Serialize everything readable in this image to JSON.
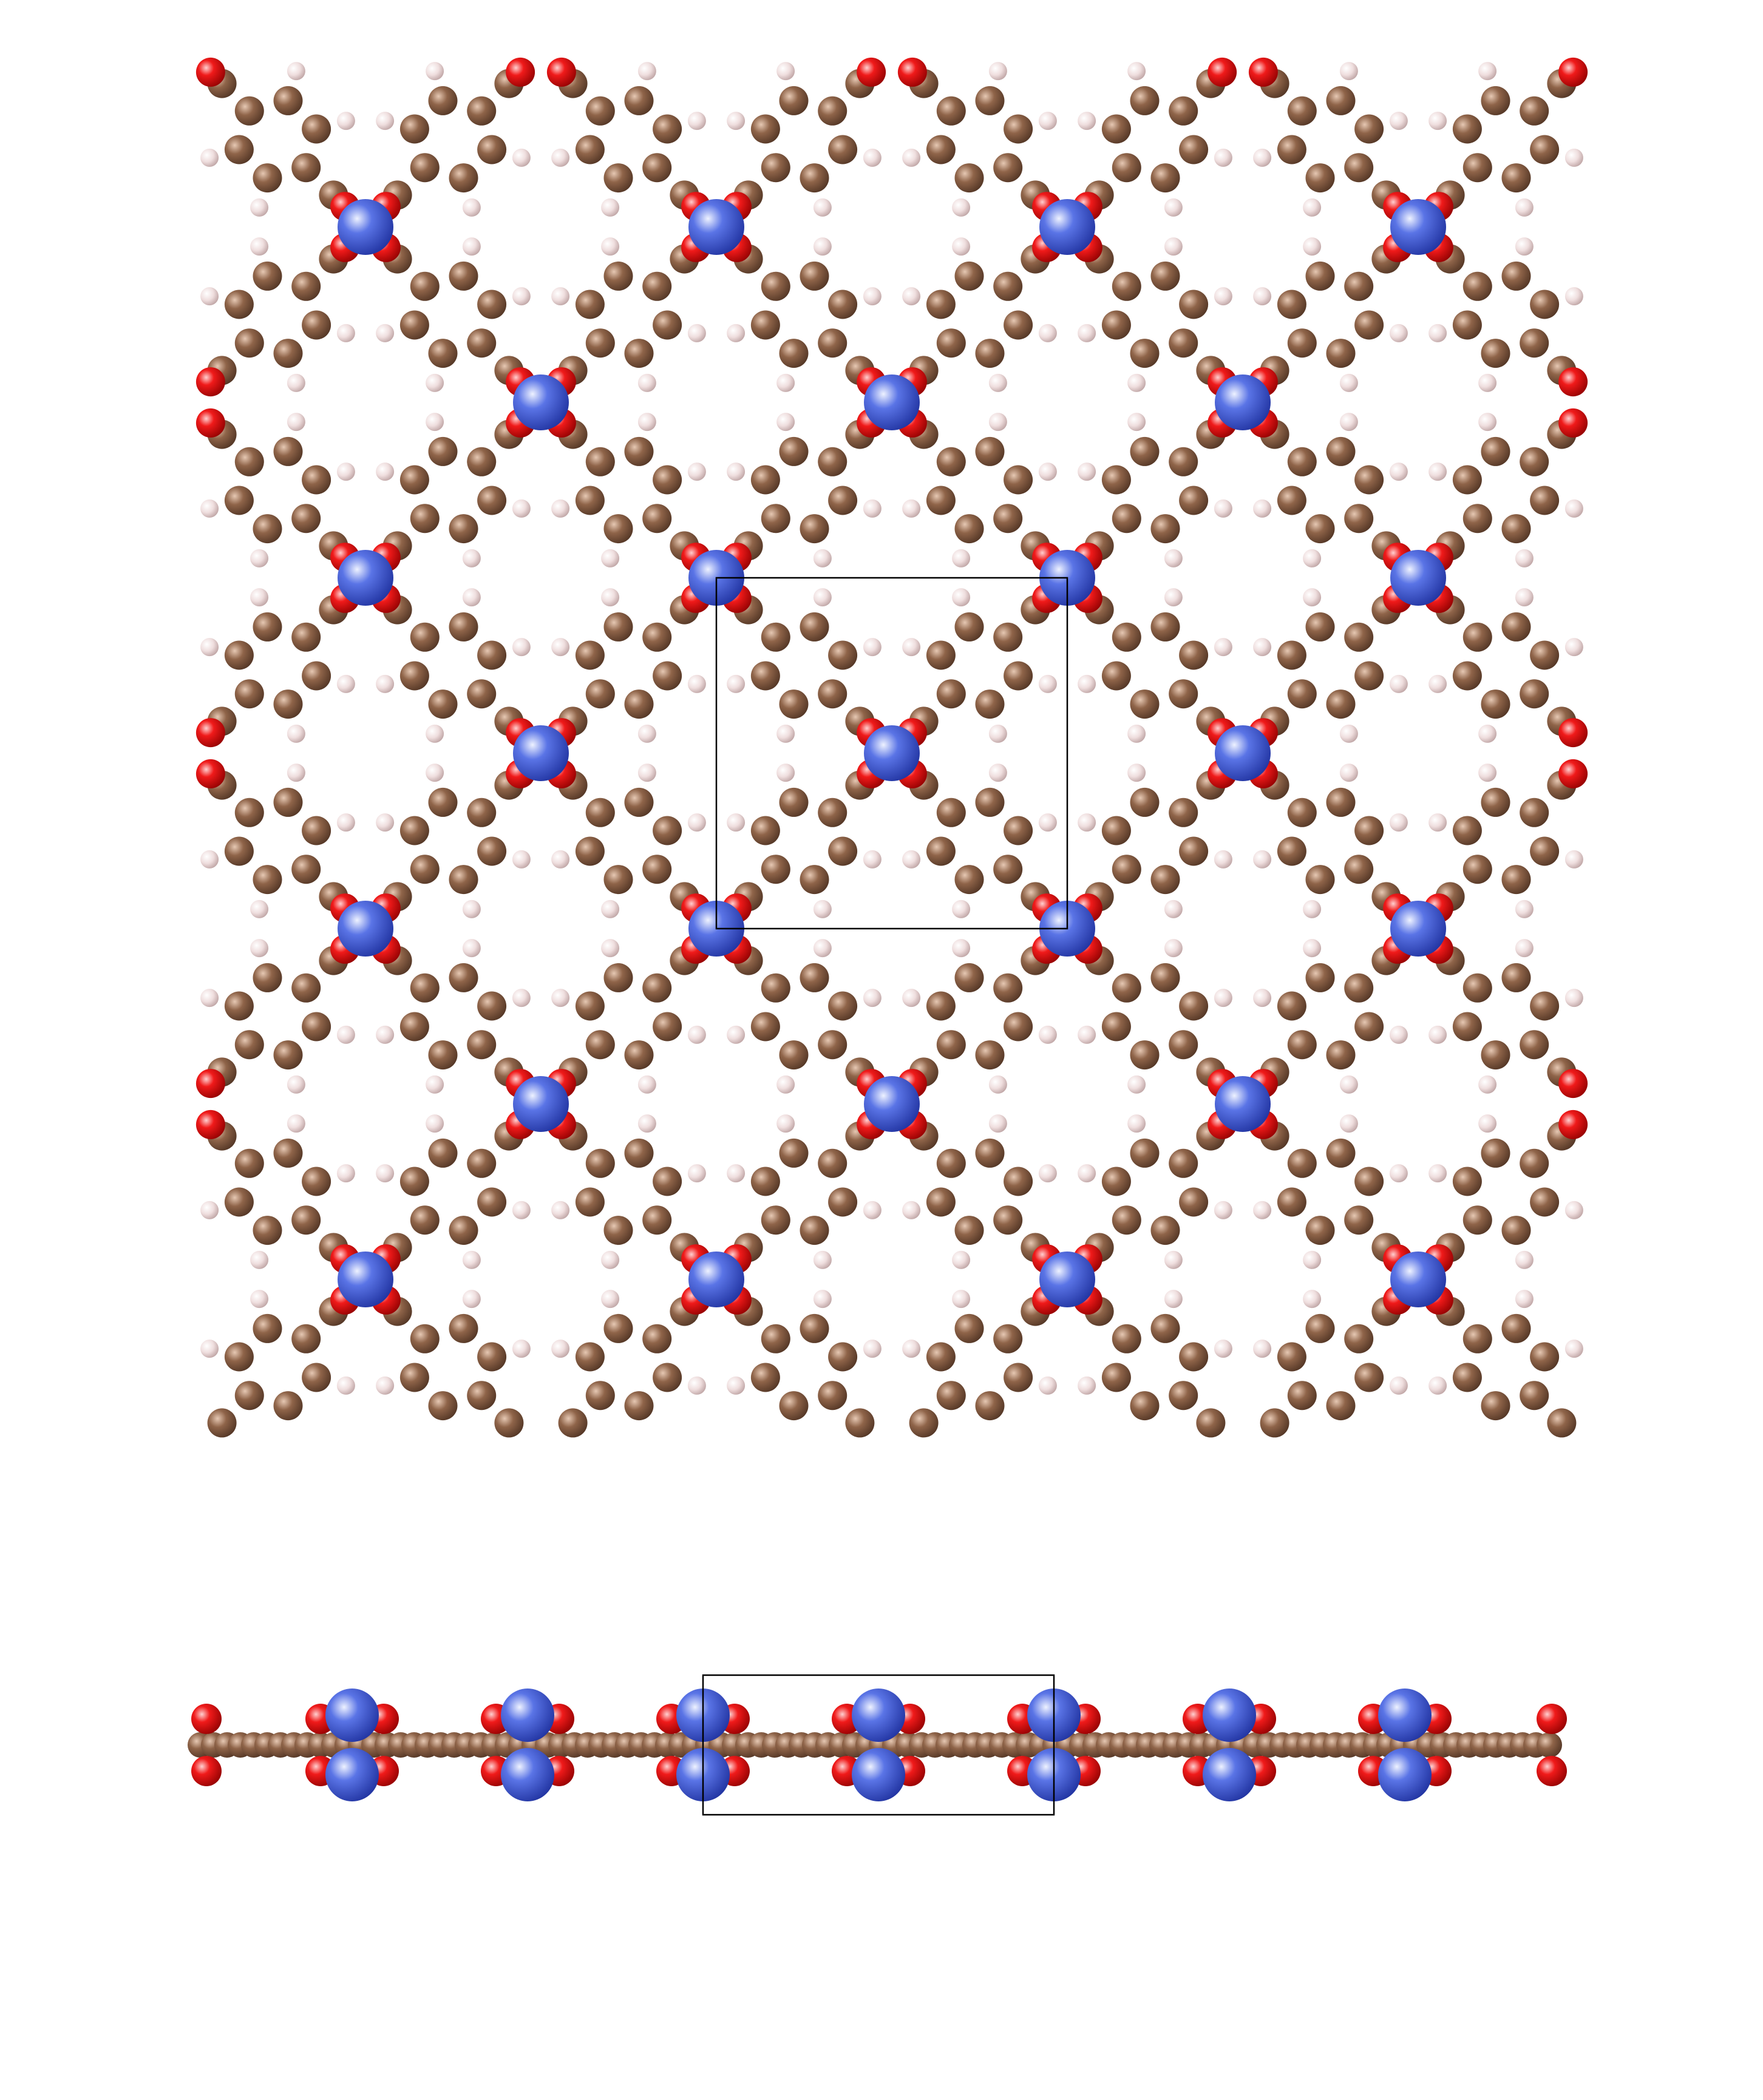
{
  "figure": {
    "kind": "crystal-structure",
    "views": [
      "top-view",
      "side-view"
    ],
    "elements": [
      {
        "symbol": "Metal",
        "color": "#3a55d0",
        "highlight": "#dfe6ff"
      },
      {
        "symbol": "O",
        "color": "#e41010",
        "highlight": "#ffc8c8"
      },
      {
        "symbol": "C",
        "color": "#8a6148",
        "highlight": "#d9bba6"
      },
      {
        "symbol": "H",
        "color": "#e6d3d3",
        "highlight": "#ffffff"
      }
    ],
    "unit_cell_outline": "#000000",
    "lattice_repeats": [
      4,
      4
    ],
    "background": "#ffffff"
  }
}
